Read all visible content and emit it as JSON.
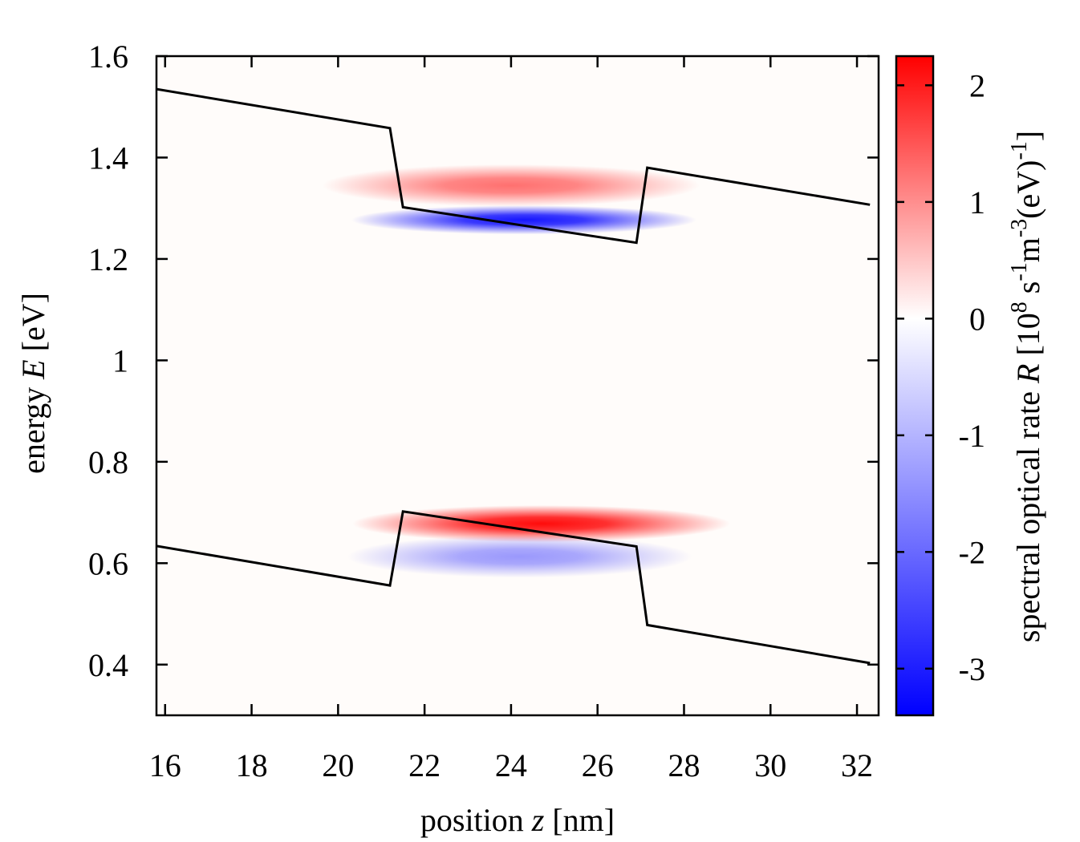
{
  "chart_data": {
    "type": "heatmap",
    "title": "",
    "xlabel": {
      "prefix": "position ",
      "var": "z",
      "suffix": " [nm]"
    },
    "ylabel": {
      "prefix": "energy ",
      "var": "E",
      "suffix": " [eV]"
    },
    "xlim": [
      15.8,
      32.5
    ],
    "ylim": [
      0.3,
      1.6
    ],
    "xticks": [
      16,
      18,
      20,
      22,
      24,
      26,
      28,
      30,
      32
    ],
    "yticks": [
      0.4,
      0.6,
      0.8,
      1,
      1.2,
      1.4,
      1.6
    ],
    "ytick_labels": [
      "0.4",
      "0.6",
      "0.8",
      "1",
      "1.2",
      "1.4",
      "1.6"
    ],
    "colorbar": {
      "label_prefix": "spectral optical rate ",
      "label_var": "R",
      "label_unit": "[10",
      "label_exp1": "8",
      "label_s": " s",
      "label_exp2": "-1",
      "label_m": "m",
      "label_exp3": "-3",
      "label_ev": "(eV)",
      "label_exp4": "-1",
      "label_end": "]",
      "range": [
        -3.4,
        2.25
      ],
      "ticks": [
        -3,
        -2,
        -1,
        0,
        1,
        2
      ],
      "tick_labels": [
        "-3",
        "-2",
        "-1",
        "0",
        "1",
        "2"
      ],
      "colors": {
        "min": "#0000ff",
        "mid": "#ffffff",
        "max": "#ff0000"
      }
    },
    "conduction_band": {
      "z": [
        15.8,
        21.2,
        21.5,
        26.9,
        27.15,
        32.3
      ],
      "E": [
        1.535,
        1.458,
        1.302,
        1.232,
        1.38,
        1.307
      ]
    },
    "valence_band": {
      "z": [
        15.8,
        21.2,
        21.5,
        26.9,
        27.15,
        32.3
      ],
      "E": [
        0.634,
        0.556,
        0.702,
        0.633,
        0.478,
        0.403
      ]
    },
    "features": [
      {
        "sign": "positive",
        "z_center": 24.0,
        "E_center": 1.345,
        "value": 1.25,
        "z_width": 2.3,
        "E_width": 0.016
      },
      {
        "sign": "negative",
        "z_center": 24.3,
        "E_center": 1.277,
        "value": -3.1,
        "z_width": 2.1,
        "E_width": 0.011
      },
      {
        "sign": "positive",
        "z_center": 24.7,
        "E_center": 0.678,
        "value": 2.15,
        "z_width": 2.3,
        "E_width": 0.014
      },
      {
        "sign": "negative",
        "z_center": 24.2,
        "E_center": 0.613,
        "value": -1.35,
        "z_width": 2.1,
        "E_width": 0.016
      }
    ]
  }
}
